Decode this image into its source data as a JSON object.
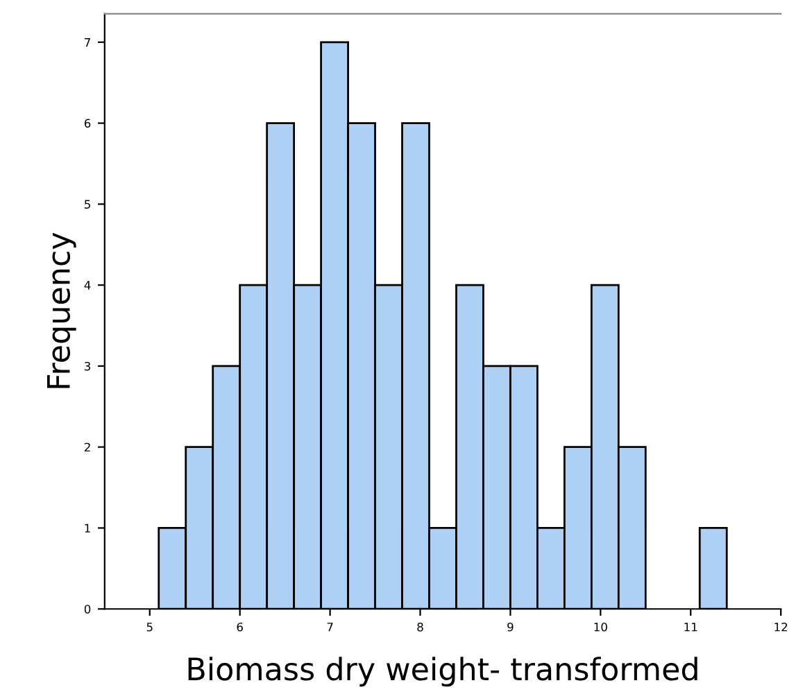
{
  "chart_data": {
    "type": "histogram",
    "xlabel": "Biomass dry weight- transformed",
    "ylabel": "Frequency",
    "bins": [
      5.1,
      5.4,
      5.7,
      6.0,
      6.3,
      6.6,
      6.9,
      7.2,
      7.5,
      7.8,
      8.1,
      8.4,
      8.7,
      9.0,
      9.3,
      9.6,
      9.9,
      10.2,
      10.5,
      10.8,
      11.1,
      11.4
    ],
    "values": [
      1,
      2,
      3,
      4,
      6,
      4,
      7,
      6,
      4,
      6,
      1,
      4,
      3,
      3,
      1,
      2,
      4,
      2,
      0,
      0,
      1
    ],
    "color": "#aed0f5",
    "xlim": [
      4.5,
      12
    ],
    "ylim": [
      0,
      7.35
    ],
    "xticks": [
      5,
      6,
      7,
      8,
      9,
      10,
      11,
      12
    ],
    "yticks": [
      0,
      1,
      2,
      3,
      4,
      5,
      6,
      7
    ],
    "grid": false
  }
}
